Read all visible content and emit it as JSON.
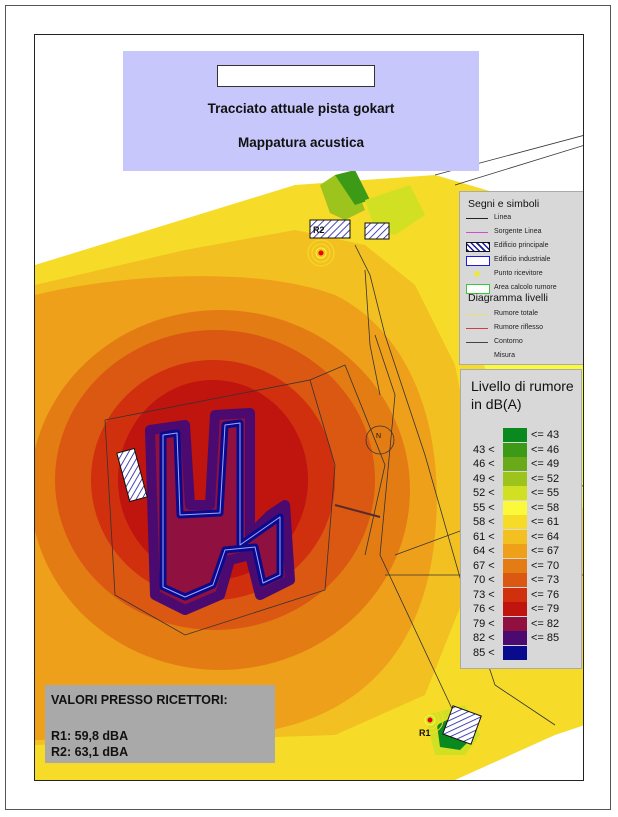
{
  "header": {
    "line1": "Tracciato attuale pista gokart",
    "line2": "Mappatura acustica"
  },
  "symbols_legend": {
    "title": "Segni e simboli",
    "items": [
      {
        "label": "Linea",
        "symbol": "line",
        "color": "#222222"
      },
      {
        "label": "Sorgente Linea",
        "symbol": "line",
        "color": "#d24ad2"
      },
      {
        "label": "Edificio principale",
        "symbol": "hatch",
        "color": "#1a1aa0"
      },
      {
        "label": "Edificio industriale",
        "symbol": "box",
        "color": "#1a1ae0"
      },
      {
        "label": "Punto ricevitore",
        "symbol": "dot",
        "color": "#e8e84a"
      },
      {
        "label": "Area calcolo rumore",
        "symbol": "box",
        "color": "#3cc83c"
      }
    ],
    "title2": "Diagramma livelli",
    "items2": [
      {
        "label": "Rumore totale",
        "symbol": "line",
        "color": "#e8e070"
      },
      {
        "label": "Rumore riflesso",
        "symbol": "line",
        "color": "#d04040"
      },
      {
        "label": "Contorno",
        "symbol": "line",
        "color": "#444444"
      },
      {
        "label": "Misura",
        "symbol": "none",
        "color": "#d8d8d8"
      }
    ]
  },
  "noise_legend": {
    "title_line1": "Livello di rumore",
    "title_line2": "in dB(A)",
    "classes": [
      {
        "lo": "",
        "hi": "<= 43",
        "color": "#0a8a1e"
      },
      {
        "lo": "43 <",
        "hi": "<= 46",
        "color": "#3c9a16"
      },
      {
        "lo": "46 <",
        "hi": "<= 49",
        "color": "#6aaa1a"
      },
      {
        "lo": "49 <",
        "hi": "<= 52",
        "color": "#9cc41c"
      },
      {
        "lo": "52 <",
        "hi": "<= 55",
        "color": "#d2e024"
      },
      {
        "lo": "55 <",
        "hi": "<= 58",
        "color": "#fafa3a"
      },
      {
        "lo": "58 <",
        "hi": "<= 61",
        "color": "#f6dc28"
      },
      {
        "lo": "61 <",
        "hi": "<= 64",
        "color": "#f2c020"
      },
      {
        "lo": "64 <",
        "hi": "<= 67",
        "color": "#eea01a"
      },
      {
        "lo": "67 <",
        "hi": "<= 70",
        "color": "#e47c14"
      },
      {
        "lo": "70 <",
        "hi": "<= 73",
        "color": "#da5812"
      },
      {
        "lo": "73 <",
        "hi": "<= 76",
        "color": "#d0300e"
      },
      {
        "lo": "76 <",
        "hi": "<= 79",
        "color": "#c0140e"
      },
      {
        "lo": "79 <",
        "hi": "<= 82",
        "color": "#901040"
      },
      {
        "lo": "82 <",
        "hi": "<= 85",
        "color": "#4a0a70"
      },
      {
        "lo": "85 <",
        "hi": "",
        "color": "#0a0a8c"
      }
    ]
  },
  "receptor_values": {
    "title": "VALORI PRESSO RICETTORI:",
    "r1": "R1: 59,8 dBA",
    "r2": "R2: 63,1 dBA"
  },
  "map_labels": {
    "receiver_1": "R1",
    "receiver_2": "R2",
    "north_marker": "N"
  }
}
